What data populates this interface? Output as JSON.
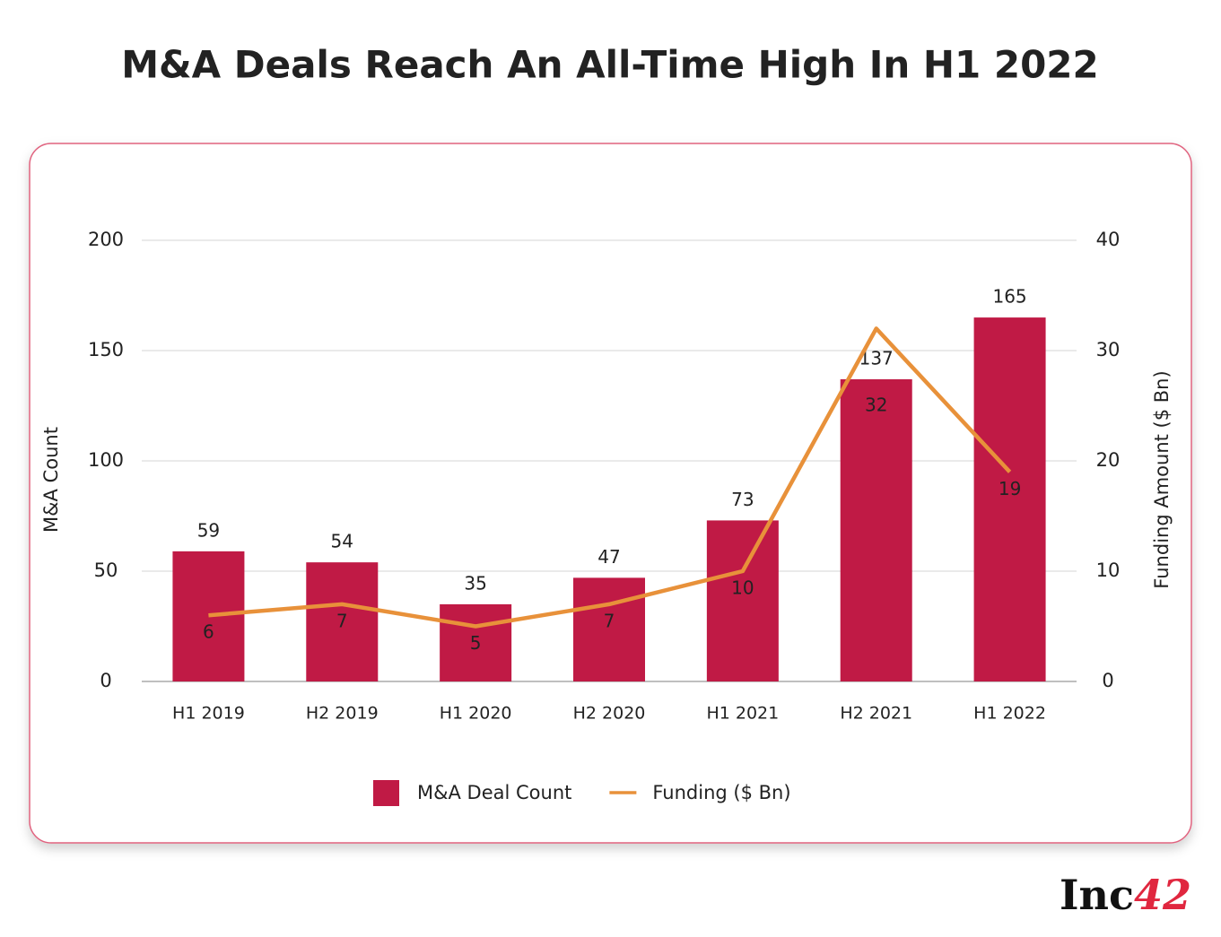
{
  "chart_data": {
    "type": "bar_line",
    "title": "M&A Deals Reach An All-Time High In H1 2022",
    "categories": [
      "H1 2019",
      "H2 2019",
      "H1 2020",
      "H2 2020",
      "H1 2021",
      "H2 2021",
      "H1 2022"
    ],
    "series": [
      {
        "name": "M&A Deal Count",
        "type": "bar",
        "color": "#c01a45",
        "values": [
          59,
          54,
          35,
          47,
          73,
          137,
          165
        ]
      },
      {
        "name": "Funding ($ Bn)",
        "type": "line",
        "axis": "y2",
        "color": "#e8913a",
        "values": [
          6,
          7,
          5,
          7,
          10,
          32,
          19
        ]
      }
    ],
    "ylabel": "M&A Count",
    "y2label": "Funding Amount ($ Bn)",
    "ylim": [
      0,
      200
    ],
    "yticks": [
      0,
      50,
      100,
      150,
      200
    ],
    "y2lim": [
      0,
      40
    ],
    "y2ticks": [
      0,
      10,
      20,
      30,
      40
    ],
    "grid": true,
    "legend": "bottom"
  },
  "logo": {
    "text": "Inc",
    "number": "42"
  }
}
